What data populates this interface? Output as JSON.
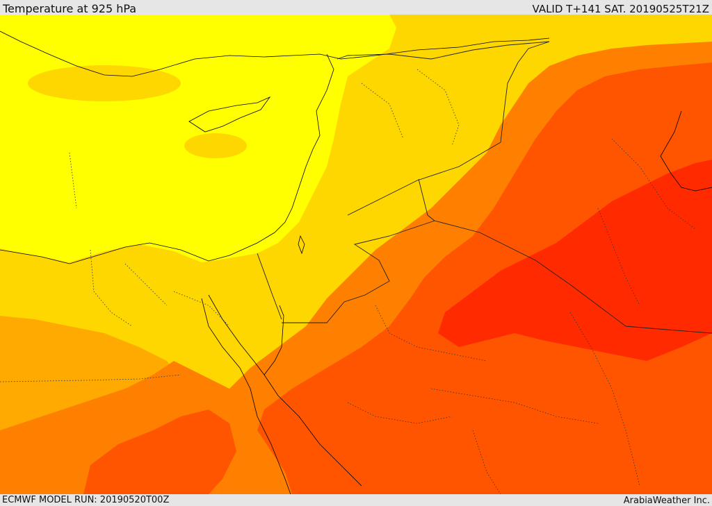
{
  "header": {
    "title": "Temperature at 925 hPa",
    "valid": "VALID T+141 SAT. 20190525T21Z"
  },
  "footer": {
    "model_run": "ECMWF MODEL RUN: 20190520T00Z",
    "credit": "ArabiaWeather Inc."
  },
  "map": {
    "field": "temperature-925hPa",
    "palette": {
      "band_yellow": "#ffff00",
      "band_gold": "#ffd700",
      "band_amber": "#ffaa00",
      "band_orange": "#ff7f00",
      "band_redorange": "#ff5500",
      "band_red": "#ff2a00"
    },
    "line_colors": {
      "coastline": "#000000",
      "border": "#222222"
    }
  }
}
